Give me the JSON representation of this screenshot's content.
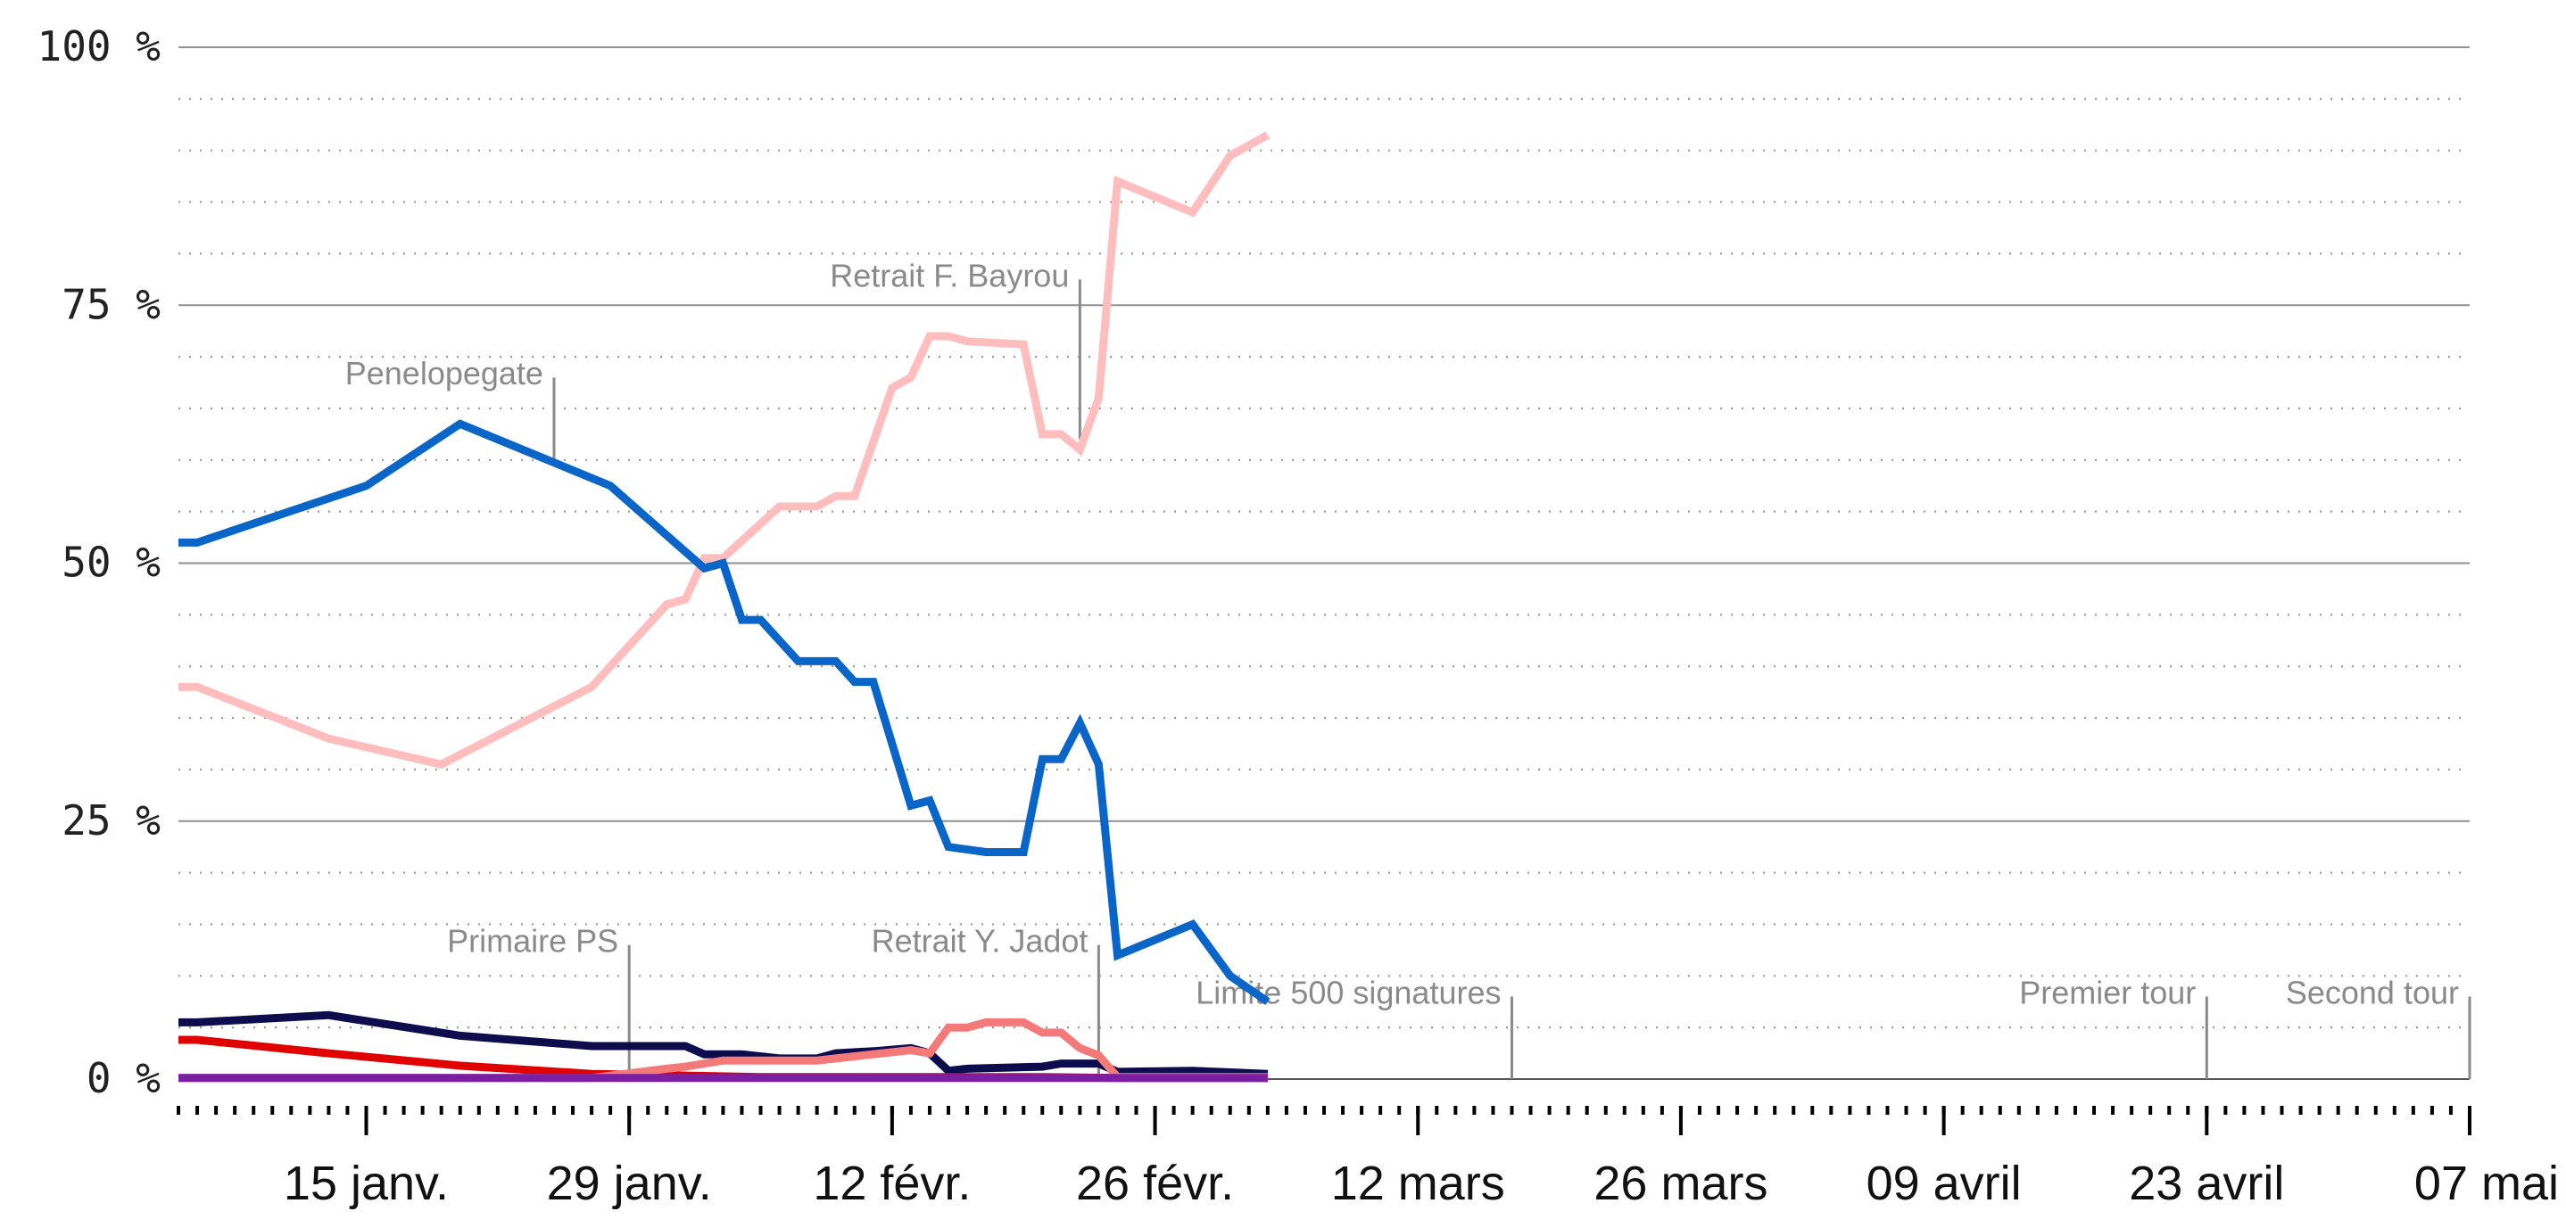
{
  "chart_data": {
    "type": "line",
    "x_start": "2017-01-05",
    "x_end": "2017-05-07",
    "ylim": [
      0,
      100
    ],
    "y_ticks": [
      {
        "value": 0,
        "label": "0 %"
      },
      {
        "value": 25,
        "label": "25 %"
      },
      {
        "value": 50,
        "label": "50 %"
      },
      {
        "value": 75,
        "label": "75 %"
      },
      {
        "value": 100,
        "label": "100 %"
      }
    ],
    "x_ticks": [
      {
        "date": "2017-01-15",
        "label": "15 janv."
      },
      {
        "date": "2017-01-29",
        "label": "29 janv."
      },
      {
        "date": "2017-02-12",
        "label": "12 févr."
      },
      {
        "date": "2017-02-26",
        "label": "26 févr."
      },
      {
        "date": "2017-03-12",
        "label": "12 mars"
      },
      {
        "date": "2017-03-26",
        "label": "26 mars"
      },
      {
        "date": "2017-04-09",
        "label": "09 avril"
      },
      {
        "date": "2017-04-23",
        "label": "23 avril"
      },
      {
        "date": "2017-05-07",
        "label": "07 mai"
      }
    ],
    "grid": {
      "major_every": 25,
      "minor_every": 5
    },
    "annotations": [
      {
        "label": "Penelopegate",
        "date": "2017-01-25",
        "y_top": 68,
        "y_bottom": 60
      },
      {
        "label": "Primaire PS",
        "date": "2017-01-29",
        "y_top": 13,
        "y_bottom": 0
      },
      {
        "label": "Retrait F. Bayrou",
        "date": "2017-02-22",
        "y_top": 77.5,
        "y_bottom": 62
      },
      {
        "label": "Retrait Y. Jadot",
        "date": "2017-02-23",
        "y_top": 13,
        "y_bottom": 0
      },
      {
        "label": "Limite 500 signatures",
        "date": "2017-03-17",
        "y_top": 8,
        "y_bottom": 0
      },
      {
        "label": "Premier tour",
        "date": "2017-04-23",
        "y_top": 8,
        "y_bottom": 0
      },
      {
        "label": "Second tour",
        "date": "2017-05-07",
        "y_top": 8,
        "y_bottom": 0
      }
    ],
    "series": [
      {
        "color": "#ffbdbd",
        "points": [
          [
            "2017-01-05",
            38
          ],
          [
            "2017-01-06",
            38
          ],
          [
            "2017-01-13",
            33
          ],
          [
            "2017-01-19",
            30.5
          ],
          [
            "2017-01-27",
            38
          ],
          [
            "2017-01-31",
            46
          ],
          [
            "2017-02-01",
            46.5
          ],
          [
            "2017-02-02",
            50.5
          ],
          [
            "2017-02-03",
            50.5
          ],
          [
            "2017-02-06",
            55.5
          ],
          [
            "2017-02-08",
            55.5
          ],
          [
            "2017-02-09",
            56.5
          ],
          [
            "2017-02-10",
            56.5
          ],
          [
            "2017-02-12",
            67
          ],
          [
            "2017-02-13",
            68
          ],
          [
            "2017-02-14",
            72
          ],
          [
            "2017-02-15",
            72
          ],
          [
            "2017-02-16",
            71.5
          ],
          [
            "2017-02-19",
            71.2
          ],
          [
            "2017-02-20",
            62.5
          ],
          [
            "2017-02-21",
            62.5
          ],
          [
            "2017-02-22",
            61
          ],
          [
            "2017-02-23",
            66
          ],
          [
            "2017-02-24",
            87
          ],
          [
            "2017-02-28",
            84
          ],
          [
            "2017-03-02",
            89.5
          ],
          [
            "2017-03-04",
            91.5
          ]
        ]
      },
      {
        "color": "#0a65c8",
        "points": [
          [
            "2017-01-05",
            52
          ],
          [
            "2017-01-06",
            52
          ],
          [
            "2017-01-15",
            57.5
          ],
          [
            "2017-01-20",
            63.5
          ],
          [
            "2017-01-28",
            57.5
          ],
          [
            "2017-02-02",
            49.5
          ],
          [
            "2017-02-03",
            50
          ],
          [
            "2017-02-04",
            44.5
          ],
          [
            "2017-02-05",
            44.5
          ],
          [
            "2017-02-07",
            40.5
          ],
          [
            "2017-02-08",
            40.5
          ],
          [
            "2017-02-09",
            40.5
          ],
          [
            "2017-02-10",
            38.5
          ],
          [
            "2017-02-11",
            38.5
          ],
          [
            "2017-02-13",
            26.5
          ],
          [
            "2017-02-14",
            27
          ],
          [
            "2017-02-15",
            22.5
          ],
          [
            "2017-02-17",
            22
          ],
          [
            "2017-02-19",
            22
          ],
          [
            "2017-02-20",
            31
          ],
          [
            "2017-02-21",
            31
          ],
          [
            "2017-02-22",
            34.5
          ],
          [
            "2017-02-23",
            30.5
          ],
          [
            "2017-02-24",
            12
          ],
          [
            "2017-02-28",
            15
          ],
          [
            "2017-03-02",
            10
          ],
          [
            "2017-03-04",
            7.5
          ]
        ]
      },
      {
        "color": "#0d0d4d",
        "points": [
          [
            "2017-01-05",
            5.5
          ],
          [
            "2017-01-06",
            5.5
          ],
          [
            "2017-01-13",
            6.2
          ],
          [
            "2017-01-20",
            4.2
          ],
          [
            "2017-01-27",
            3.2
          ],
          [
            "2017-02-01",
            3.2
          ],
          [
            "2017-02-02",
            2.4
          ],
          [
            "2017-02-04",
            2.4
          ],
          [
            "2017-02-06",
            2
          ],
          [
            "2017-02-08",
            2
          ],
          [
            "2017-02-09",
            2.5
          ],
          [
            "2017-02-11",
            2.7
          ],
          [
            "2017-02-13",
            3
          ],
          [
            "2017-02-14",
            2.5
          ],
          [
            "2017-02-15",
            0.8
          ],
          [
            "2017-02-16",
            1
          ],
          [
            "2017-02-20",
            1.2
          ],
          [
            "2017-02-21",
            1.5
          ],
          [
            "2017-02-23",
            1.5
          ],
          [
            "2017-02-24",
            0.7
          ],
          [
            "2017-02-28",
            0.8
          ],
          [
            "2017-03-04",
            0.5
          ]
        ]
      },
      {
        "color": "#e00000",
        "points": [
          [
            "2017-01-05",
            3.8
          ],
          [
            "2017-01-06",
            3.8
          ],
          [
            "2017-01-13",
            2.5
          ],
          [
            "2017-01-20",
            1.3
          ],
          [
            "2017-01-27",
            0.5
          ],
          [
            "2017-02-05",
            0.2
          ],
          [
            "2017-02-20",
            0.2
          ],
          [
            "2017-02-24",
            0.1
          ],
          [
            "2017-03-04",
            0.1
          ]
        ]
      },
      {
        "color": "#f47a7a",
        "points": [
          [
            "2017-01-05",
            0.1
          ],
          [
            "2017-01-27",
            0.1
          ],
          [
            "2017-01-31",
            1
          ],
          [
            "2017-02-01",
            1.2
          ],
          [
            "2017-02-03",
            1.8
          ],
          [
            "2017-02-05",
            1.8
          ],
          [
            "2017-02-08",
            1.8
          ],
          [
            "2017-02-10",
            2.2
          ],
          [
            "2017-02-13",
            2.8
          ],
          [
            "2017-02-14",
            2.5
          ],
          [
            "2017-02-15",
            5
          ],
          [
            "2017-02-16",
            5
          ],
          [
            "2017-02-17",
            5.5
          ],
          [
            "2017-02-19",
            5.5
          ],
          [
            "2017-02-20",
            4.5
          ],
          [
            "2017-02-21",
            4.5
          ],
          [
            "2017-02-22",
            3
          ],
          [
            "2017-02-23",
            2.3
          ],
          [
            "2017-02-24",
            0.2
          ],
          [
            "2017-03-04",
            0.2
          ]
        ]
      },
      {
        "color": "#7b1fa2",
        "points": [
          [
            "2017-01-05",
            0.1
          ],
          [
            "2017-03-04",
            0.1
          ]
        ]
      }
    ]
  }
}
